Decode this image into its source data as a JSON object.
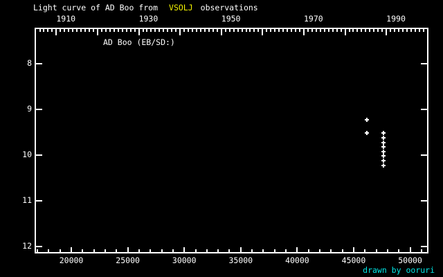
{
  "title": {
    "prefix": "Light curve of AD Boo from",
    "source": "VSOLJ",
    "suffix": "observations"
  },
  "star_label": "AD Boo (EB/SD:)",
  "credit": "drawn by ooruri",
  "colors": {
    "background": "#000000",
    "foreground": "#ffffff",
    "source_highlight": "#f2f200",
    "credit": "#00e6e6"
  },
  "chart_data": {
    "type": "scatter",
    "marker": "plus",
    "grid": false,
    "title": "Light curve of AD Boo from VSOLJ observations",
    "x_axis_bottom": {
      "tick_labels": [
        20000,
        25000,
        30000,
        35000,
        40000,
        45000,
        50000
      ],
      "minor_step": 1000,
      "range": [
        16750,
        51620
      ]
    },
    "x_axis_top": {
      "unit": "year",
      "tick_labels": [
        1910,
        1930,
        1950,
        1970,
        1990
      ],
      "major_step_years": 10,
      "minor_step_years": 1
    },
    "y_axis": {
      "tick_labels": [
        8,
        9,
        10,
        11,
        12
      ],
      "range_top_to_bottom": [
        7.21,
        12.15
      ]
    },
    "points": [
      {
        "jd": 46160,
        "mag": 9.23
      },
      {
        "jd": 46160,
        "mag": 9.51
      },
      {
        "jd": 47650,
        "mag": 9.51
      },
      {
        "jd": 47650,
        "mag": 9.62
      },
      {
        "jd": 47650,
        "mag": 9.72
      },
      {
        "jd": 47650,
        "mag": 9.82
      },
      {
        "jd": 47650,
        "mag": 9.92
      },
      {
        "jd": 47650,
        "mag": 10.02
      },
      {
        "jd": 47650,
        "mag": 10.12
      },
      {
        "jd": 47650,
        "mag": 10.22
      }
    ]
  }
}
